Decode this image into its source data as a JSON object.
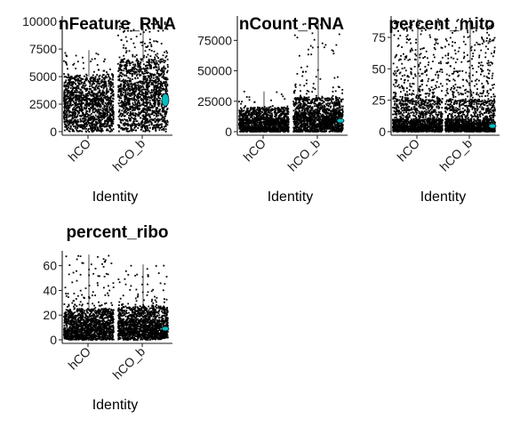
{
  "chart_data": [
    {
      "type": "violin-jitter",
      "title": "nFeature_RNA",
      "xlabel": "Identity",
      "ylabel": "",
      "categories": [
        "hCO",
        "hCO_b"
      ],
      "ylim": [
        0,
        10500
      ],
      "yticks": [
        0,
        2500,
        5000,
        7500,
        10000
      ],
      "ytick_labels": [
        "0",
        "2500",
        "5000",
        "7500",
        "10000"
      ],
      "groups": [
        {
          "name": "hCO",
          "p05": 300,
          "q1": 1200,
          "median": 2500,
          "q3": 3600,
          "p95": 5000,
          "max": 7400,
          "n_outliers": 35
        },
        {
          "name": "hCO_b",
          "p05": 400,
          "q1": 1800,
          "median": 3200,
          "q3": 4500,
          "p95": 6300,
          "max": 10100,
          "n_outliers": 110
        }
      ]
    },
    {
      "type": "violin-jitter",
      "title": "nCount_RNA",
      "xlabel": "Identity",
      "ylabel": "",
      "categories": [
        "hCO",
        "hCO_b"
      ],
      "ylim": [
        0,
        95000
      ],
      "yticks": [
        0,
        25000,
        50000,
        75000
      ],
      "ytick_labels": [
        "0",
        "25000",
        "50000",
        "75000"
      ],
      "groups": [
        {
          "name": "hCO",
          "p05": 400,
          "q1": 3000,
          "median": 7000,
          "q3": 11000,
          "p95": 19000,
          "max": 33000,
          "n_outliers": 25
        },
        {
          "name": "hCO_b",
          "p05": 500,
          "q1": 5000,
          "median": 10000,
          "q3": 16000,
          "p95": 27000,
          "max": 89000,
          "n_outliers": 75
        }
      ]
    },
    {
      "type": "violin-jitter",
      "title": "percent_mito",
      "xlabel": "Identity",
      "ylabel": "",
      "categories": [
        "hCO",
        "hCO_b"
      ],
      "ylim": [
        0,
        92
      ],
      "yticks": [
        0,
        25,
        50,
        75
      ],
      "ytick_labels": [
        "0",
        "25",
        "50",
        "75"
      ],
      "groups": [
        {
          "name": "hCO",
          "p05": 0.5,
          "q1": 2,
          "median": 5,
          "q3": 10,
          "p95": 24,
          "max": 90,
          "n_outliers": 320
        },
        {
          "name": "hCO_b",
          "p05": 0.5,
          "q1": 2,
          "median": 5,
          "q3": 10,
          "p95": 24,
          "max": 90,
          "n_outliers": 290
        }
      ]
    },
    {
      "type": "violin-jitter",
      "title": "percent_ribo",
      "xlabel": "Identity",
      "ylabel": "",
      "categories": [
        "hCO",
        "hCO_b"
      ],
      "ylim": [
        0,
        72
      ],
      "yticks": [
        0,
        20,
        40,
        60
      ],
      "ytick_labels": [
        "0",
        "20",
        "40",
        "60"
      ],
      "groups": [
        {
          "name": "hCO",
          "p05": 1,
          "q1": 5,
          "median": 10,
          "q3": 16,
          "p95": 24,
          "max": 69,
          "n_outliers": 110
        },
        {
          "name": "hCO_b",
          "p05": 1,
          "q1": 5,
          "median": 10,
          "q3": 16,
          "p95": 26,
          "max": 61,
          "n_outliers": 70
        }
      ]
    }
  ],
  "colors": {
    "points": "#000000",
    "violin_fill": "#00bfc4",
    "violin_outline": "#1a1a1a",
    "axis": "#1a1a1a",
    "background": "#ffffff"
  }
}
